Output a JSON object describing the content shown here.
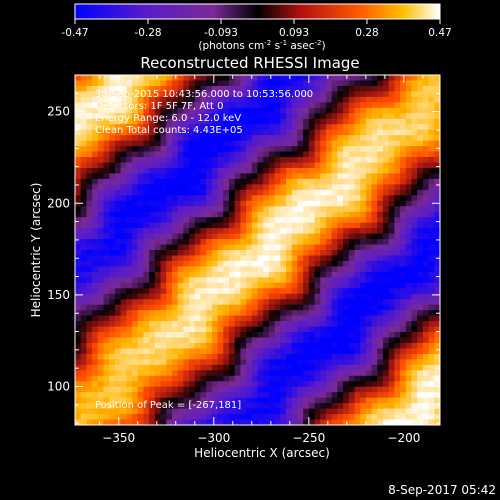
{
  "colorbar": {
    "ticks": [
      "-0.47",
      "-0.28",
      "-0.093",
      "0.093",
      "0.28",
      "0.47"
    ],
    "units_html": "(photons cm<tspan baseline-shift=\"super\" font-size=\"7\">-2</tspan> s<tspan baseline-shift=\"super\" font-size=\"7\">-1</tspan> asec<tspan baseline-shift=\"super\" font-size=\"7\">-2</tspan>)"
  },
  "plot": {
    "title": "Reconstructed RHESSI Image",
    "info_lines": [
      "30-Sep-2015 10:43:56.000 to 10:53:56.000",
      "Detectors: 1F 5F 7F, Att 0",
      "Energy Range: 6.0 - 12.0 keV",
      "Clean    Total counts: 4.43E+05"
    ],
    "peak_label": "Position of Peak = [-267,181]",
    "xlabel": "Heliocentric X (arcsec)",
    "ylabel": "Heliocentric Y (arcsec)"
  },
  "footer": {
    "date": "8-Sep-2017 05:42"
  },
  "chart_data": {
    "type": "heatmap",
    "title": "Reconstructed RHESSI Image",
    "xlabel": "Heliocentric X (arcsec)",
    "ylabel": "Heliocentric Y (arcsec)",
    "xlim": [
      -373,
      -181
    ],
    "ylim": [
      79,
      270
    ],
    "x_ticks": [
      -350,
      -300,
      -250,
      -200
    ],
    "y_ticks": [
      100,
      150,
      200,
      250
    ],
    "colorbar_range": [
      -0.47,
      0.47
    ],
    "colormap": [
      "#0000ff",
      "#5a1cc8",
      "#7a2a96",
      "#000000",
      "#a01414",
      "#ff4a00",
      "#ffb400",
      "#ffffff"
    ],
    "peak": [
      -267,
      181
    ],
    "grid": false
  }
}
